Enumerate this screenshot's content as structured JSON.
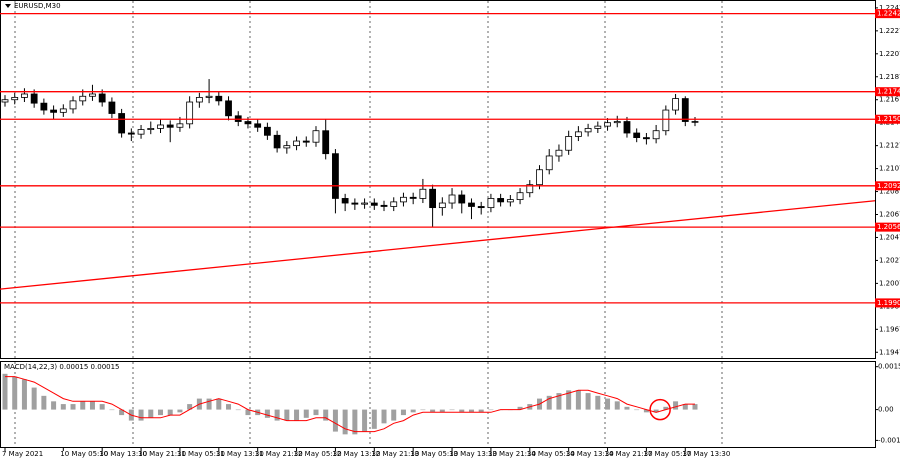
{
  "chart_data": [
    {
      "type": "candlestick",
      "title": "EURUSD,M30",
      "categories": [
        "7 May 2021",
        null,
        null,
        null,
        null,
        null,
        "10 May 05:30",
        null,
        null,
        null,
        "10 May 13:30",
        null,
        null,
        null,
        "10 May 21:30",
        null,
        null,
        null,
        "11 May 05:30",
        null,
        null,
        null,
        "11 May 13:30",
        null,
        null,
        null,
        "11 May 21:30",
        null,
        null,
        null,
        "12 May 05:30",
        null,
        null,
        null,
        "12 May 13:30",
        null,
        null,
        null,
        "12 May 21:30",
        null,
        null,
        null,
        "13 May 05:30",
        null,
        null,
        null,
        "13 May 13:30",
        null,
        null,
        null,
        "13 May 21:30",
        null,
        null,
        null,
        "14 May 05:30",
        null,
        null,
        null,
        "14 May 13:30",
        null,
        null,
        null,
        "14 May 21:30",
        null,
        null,
        null,
        "17 May 05:30",
        null,
        null,
        null,
        "17 May 13:30",
        null
      ],
      "open": [
        1.2165,
        1.2167,
        1.2169,
        1.2172,
        1.2164,
        1.2158,
        1.2156,
        1.2159,
        1.2166,
        1.217,
        1.2172,
        1.2165,
        1.2155,
        1.2138,
        1.2137,
        1.2141,
        1.2142,
        1.2145,
        1.2143,
        1.2146,
        1.2165,
        1.2169,
        1.217,
        1.2166,
        1.2153,
        1.2148,
        1.2146,
        1.2143,
        1.2136,
        1.2125,
        1.2127,
        1.2131,
        1.213,
        1.214,
        1.212,
        1.2081,
        1.2077,
        1.2076,
        1.2077,
        1.2075,
        1.2074,
        1.2078,
        1.2082,
        1.2081,
        1.2089,
        1.2073,
        1.2077,
        1.2084,
        1.2077,
        1.2074,
        1.2073,
        1.2081,
        1.2078,
        1.208,
        1.2086,
        1.2093,
        1.2106,
        1.2118,
        1.2123,
        1.2135,
        1.2139,
        1.2142,
        1.2144,
        1.2147,
        1.2148,
        1.2138,
        1.2134,
        1.2133,
        1.214,
        1.2158,
        1.2168,
        1.2148
      ],
      "high": [
        1.2171,
        1.2173,
        1.2177,
        1.2176,
        1.2168,
        1.2162,
        1.2163,
        1.217,
        1.2176,
        1.218,
        1.2176,
        1.2169,
        1.2159,
        1.2142,
        1.2145,
        1.2148,
        1.215,
        1.2149,
        1.2152,
        1.217,
        1.2173,
        1.2185,
        1.2174,
        1.217,
        1.2157,
        1.2152,
        1.215,
        1.2147,
        1.214,
        1.2131,
        1.2135,
        1.2135,
        1.2144,
        1.215,
        1.2124,
        1.2085,
        1.2081,
        1.2081,
        1.2081,
        1.2079,
        1.2082,
        1.2086,
        1.2086,
        1.2098,
        1.2093,
        1.2082,
        1.209,
        1.2088,
        1.2081,
        1.2078,
        1.2085,
        1.2085,
        1.2084,
        1.209,
        1.2097,
        1.211,
        1.2124,
        1.2128,
        1.214,
        1.2144,
        1.2146,
        1.2148,
        1.2151,
        1.2153,
        1.2152,
        1.2142,
        1.2138,
        1.2145,
        1.2162,
        1.2172,
        1.217,
        1.2152
      ],
      "low": [
        1.2161,
        1.2163,
        1.2165,
        1.216,
        1.2154,
        1.215,
        1.2152,
        1.2155,
        1.2162,
        1.2166,
        1.2161,
        1.2151,
        1.2134,
        1.2131,
        1.2133,
        1.2137,
        1.2138,
        1.213,
        1.2139,
        1.2142,
        1.216,
        1.2164,
        1.2162,
        1.2149,
        1.2144,
        1.2142,
        1.2139,
        1.2132,
        1.2121,
        1.212,
        1.2123,
        1.2126,
        1.2126,
        1.2115,
        1.2068,
        1.207,
        1.2071,
        1.2072,
        1.2071,
        1.207,
        1.207,
        1.2074,
        1.2076,
        1.2077,
        1.2056,
        1.2066,
        1.2072,
        1.2068,
        1.2063,
        1.2067,
        1.2069,
        1.2074,
        1.2074,
        1.2076,
        1.2082,
        1.2089,
        1.2102,
        1.2113,
        1.2119,
        1.2131,
        1.2135,
        1.2138,
        1.214,
        1.2143,
        1.2134,
        1.213,
        1.2128,
        1.2129,
        1.2136,
        1.2154,
        1.2144,
        1.2144
      ],
      "close": [
        1.2167,
        1.2169,
        1.2172,
        1.2164,
        1.2158,
        1.2156,
        1.2159,
        1.2166,
        1.217,
        1.2172,
        1.2165,
        1.2155,
        1.2138,
        1.2137,
        1.2141,
        1.2142,
        1.2145,
        1.2143,
        1.2146,
        1.2165,
        1.2169,
        1.217,
        1.2166,
        1.2153,
        1.2148,
        1.2146,
        1.2143,
        1.2136,
        1.2125,
        1.2127,
        1.2131,
        1.213,
        1.214,
        1.212,
        1.2081,
        1.2077,
        1.2076,
        1.2077,
        1.2075,
        1.2074,
        1.2078,
        1.2082,
        1.2081,
        1.2089,
        1.2073,
        1.2077,
        1.2084,
        1.2077,
        1.2074,
        1.2073,
        1.2081,
        1.2078,
        1.208,
        1.2086,
        1.2093,
        1.2106,
        1.2118,
        1.2123,
        1.2135,
        1.2139,
        1.2142,
        1.2144,
        1.2147,
        1.2148,
        1.2138,
        1.2134,
        1.2133,
        1.214,
        1.2158,
        1.2168,
        1.2148,
        1.2148
      ],
      "ylim": [
        1.1942,
        1.2253
      ],
      "yticks": [
        1.2247,
        1.2227,
        1.2207,
        1.2187,
        1.2167,
        1.2147,
        1.2127,
        1.2107,
        1.2087,
        1.2067,
        1.2047,
        1.2027,
        1.2007,
        1.1987,
        1.1967,
        1.1947
      ],
      "levels": [
        1.2242,
        1.2174,
        {
          "value": 1.215,
          "label": "1.2150"
        },
        1.2092,
        1.2056,
        {
          "value": 1.199,
          "label": "1.1990"
        }
      ],
      "level_color": "#ff0000",
      "trendline": [
        1.2002,
        1.2079
      ],
      "grid": true
    },
    {
      "type": "macd",
      "title": "MACD(14,22,3) 0.00015 0.00015",
      "values": [
        0.0013,
        0.0012,
        0.0011,
        0.0008,
        0.0005,
        0.0003,
        0.0002,
        0.0002,
        0.0003,
        0.0003,
        0.0002,
        0.0,
        -0.0002,
        -0.0004,
        -0.0004,
        -0.0003,
        -0.0002,
        -0.0002,
        -0.0001,
        0.0002,
        0.0004,
        0.0004,
        0.0004,
        0.0002,
        0.0,
        -0.0002,
        -0.0002,
        -0.0003,
        -0.0004,
        -0.0004,
        -0.0004,
        -0.0003,
        -0.0002,
        -0.0004,
        -0.0008,
        -0.0009,
        -0.0009,
        -0.0008,
        -0.0007,
        -0.0005,
        -0.0004,
        -0.0002,
        -0.0001,
        0.0,
        -0.0001,
        -0.0001,
        0.0,
        -0.0001,
        -0.0001,
        -0.0001,
        0.0,
        0.0,
        0.0,
        0.0001,
        0.0002,
        0.0004,
        0.0005,
        0.0006,
        0.0007,
        0.0007,
        0.0006,
        0.0005,
        0.0004,
        0.0003,
        0.0001,
        0.0,
        -0.0001,
        -0.0001,
        0.0001,
        0.0003,
        0.0002,
        0.0002
      ],
      "color": "#a0a0a0",
      "signal": [
        0.0012,
        0.0012,
        0.0011,
        0.001,
        0.0008,
        0.0006,
        0.0004,
        0.0003,
        0.0003,
        0.0003,
        0.0003,
        0.0002,
        0.0,
        -0.0002,
        -0.0003,
        -0.0003,
        -0.0003,
        -0.0002,
        -0.0002,
        0.0,
        0.0002,
        0.0003,
        0.0004,
        0.0003,
        0.0002,
        0.0,
        -0.0001,
        -0.0002,
        -0.0003,
        -0.0004,
        -0.0004,
        -0.0004,
        -0.0003,
        -0.0003,
        -0.0005,
        -0.0007,
        -0.0008,
        -0.0008,
        -0.0008,
        -0.0007,
        -0.0005,
        -0.0004,
        -0.0002,
        -0.0001,
        -0.0001,
        -0.0001,
        -0.0001,
        -0.0001,
        -0.0001,
        -0.0001,
        -0.0001,
        0.0,
        0.0,
        0.0,
        0.0001,
        0.0002,
        0.0004,
        0.0005,
        0.0006,
        0.0007,
        0.0007,
        0.0006,
        0.0005,
        0.0004,
        0.0002,
        0.0001,
        0.0,
        -0.0001,
        0.0,
        0.0001,
        0.0002,
        0.0002
      ],
      "signal_color": "#ff0000",
      "ylim": [
        -0.00136,
        0.00173
      ],
      "yticks": [
        0.00156,
        {
          "value": 0,
          "label": "0.00"
        },
        -0.00112
      ]
    }
  ]
}
